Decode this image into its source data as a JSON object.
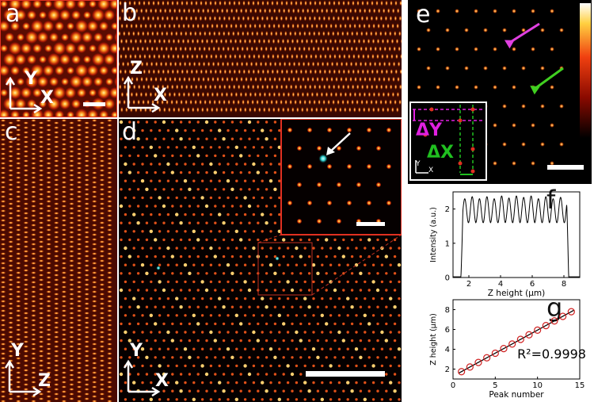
{
  "panels": {
    "a": {
      "label": "a",
      "axis_v": "Y",
      "axis_h": "X"
    },
    "b": {
      "label": "b",
      "axis_v": "Z",
      "axis_h": "X"
    },
    "c": {
      "label": "c",
      "axis_v": "Y",
      "axis_h": "Z"
    },
    "d": {
      "label": "d",
      "axis_v": "Y",
      "axis_h": "X"
    },
    "e": {
      "label": "e",
      "inset_delta_y": "ΔY",
      "inset_delta_x": "ΔX",
      "inset_axis_v": "Y",
      "inset_axis_h": "X"
    },
    "f": {
      "label": "f"
    },
    "g": {
      "label": "g"
    }
  },
  "colors": {
    "hot_dark": "#1a0300",
    "hot_mid": "#c0280a",
    "hot_bright": "#ffe070",
    "inset_border": "#e03020",
    "cyan_marker": "#40d8d0",
    "magenta": "#e020e0",
    "green": "#20c020",
    "fit_line": "#d02020"
  },
  "chart_data": [
    {
      "id": "f",
      "type": "line",
      "title": "",
      "xlabel": "Z height (μm)",
      "ylabel": "Intensity (a.u.)",
      "xlim": [
        1,
        9
      ],
      "ylim": [
        0,
        2.5
      ],
      "x_ticks": [
        2,
        4,
        6,
        8
      ],
      "y_ticks": [
        0,
        1,
        2
      ],
      "envelope": {
        "start": 1.5,
        "end": 8.3,
        "baseline": 0.02
      },
      "peaks": [
        {
          "x": 1.74,
          "y": 2.3
        },
        {
          "x": 2.21,
          "y": 2.36
        },
        {
          "x": 2.67,
          "y": 2.3
        },
        {
          "x": 3.14,
          "y": 2.36
        },
        {
          "x": 3.6,
          "y": 2.3
        },
        {
          "x": 4.07,
          "y": 2.38
        },
        {
          "x": 4.53,
          "y": 2.32
        },
        {
          "x": 5.0,
          "y": 2.38
        },
        {
          "x": 5.46,
          "y": 2.34
        },
        {
          "x": 5.93,
          "y": 2.38
        },
        {
          "x": 6.39,
          "y": 2.3
        },
        {
          "x": 6.86,
          "y": 2.36
        },
        {
          "x": 7.32,
          "y": 2.3
        },
        {
          "x": 7.79,
          "y": 2.34
        }
      ],
      "valley_level": 1.6
    },
    {
      "id": "g",
      "type": "scatter",
      "title": "",
      "xlabel": "Peak number",
      "ylabel": "Z height (μm)",
      "xlim": [
        0,
        15
      ],
      "ylim": [
        1,
        9
      ],
      "x_ticks": [
        0,
        5,
        10,
        15
      ],
      "y_ticks": [
        2,
        4,
        6,
        8
      ],
      "annotation": "R²=0.9998",
      "x": [
        1,
        2,
        3,
        4,
        5,
        6,
        7,
        8,
        9,
        10,
        11,
        12,
        13,
        14
      ],
      "y": [
        1.74,
        2.21,
        2.67,
        3.14,
        3.6,
        4.07,
        4.53,
        5.0,
        5.46,
        5.93,
        6.39,
        6.86,
        7.32,
        7.79
      ],
      "fit": {
        "slope": 0.4654,
        "intercept": 1.28
      }
    }
  ]
}
